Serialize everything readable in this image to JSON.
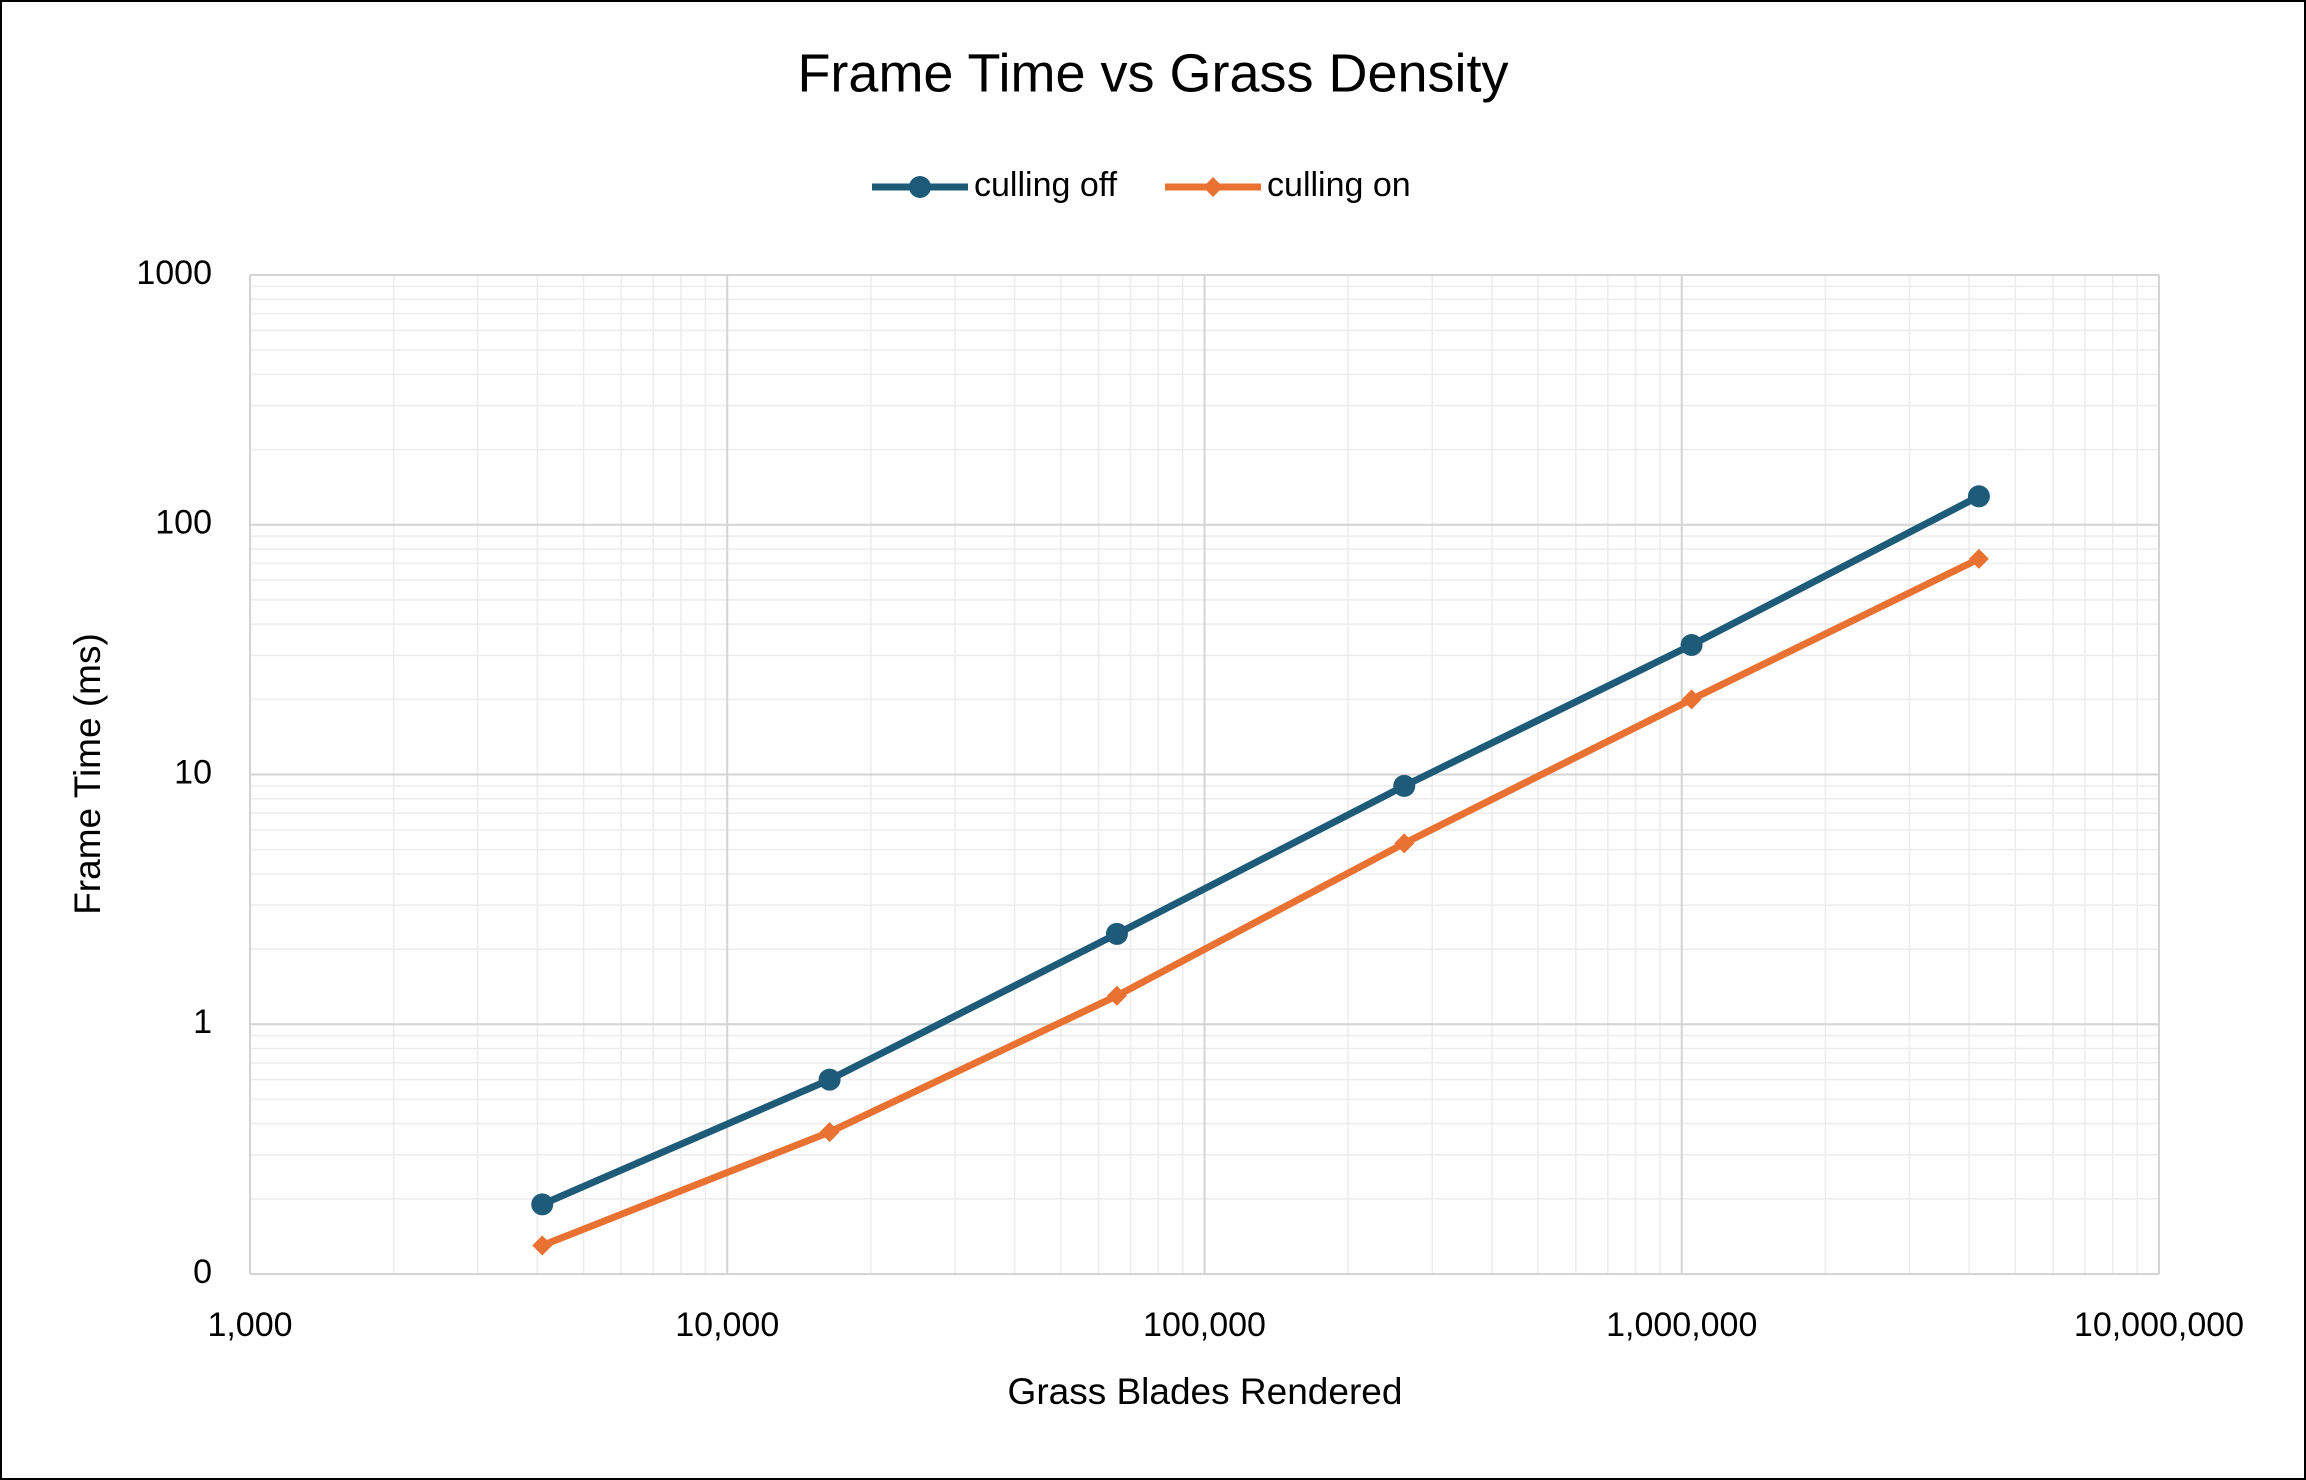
{
  "chart_data": {
    "type": "line",
    "title": "Frame Time vs Grass Density",
    "x_label": "Grass Blades Rendered",
    "y_label": "Frame Time (ms)",
    "x": [
      4096,
      16384,
      65536,
      262144,
      1048576,
      4194304
    ],
    "series": [
      {
        "name": "culling off",
        "color": "#1d5b79",
        "marker": "circle",
        "values": [
          0.19,
          0.6,
          2.3,
          9,
          33,
          130
        ]
      },
      {
        "name": "culling on",
        "color": "#e97132",
        "marker": "diamond",
        "values": [
          0.13,
          0.37,
          1.3,
          5.3,
          20,
          73
        ]
      }
    ],
    "xlim": [
      1000,
      10000000
    ],
    "xticks": [
      {
        "value": 1000,
        "label": "1,000"
      },
      {
        "value": 10000,
        "label": "10,000"
      },
      {
        "value": 100000,
        "label": "100,000"
      },
      {
        "value": 1000000,
        "label": "1,000,000"
      },
      {
        "value": 10000000,
        "label": "10,000,000"
      }
    ],
    "ylim": [
      0.1,
      1000
    ],
    "yticks": [
      {
        "value": 0.1,
        "label": "0"
      },
      1,
      10,
      100,
      1000
    ],
    "x_log": true,
    "y_log": true,
    "grid": true,
    "minor_grid": true,
    "legend": "top"
  }
}
